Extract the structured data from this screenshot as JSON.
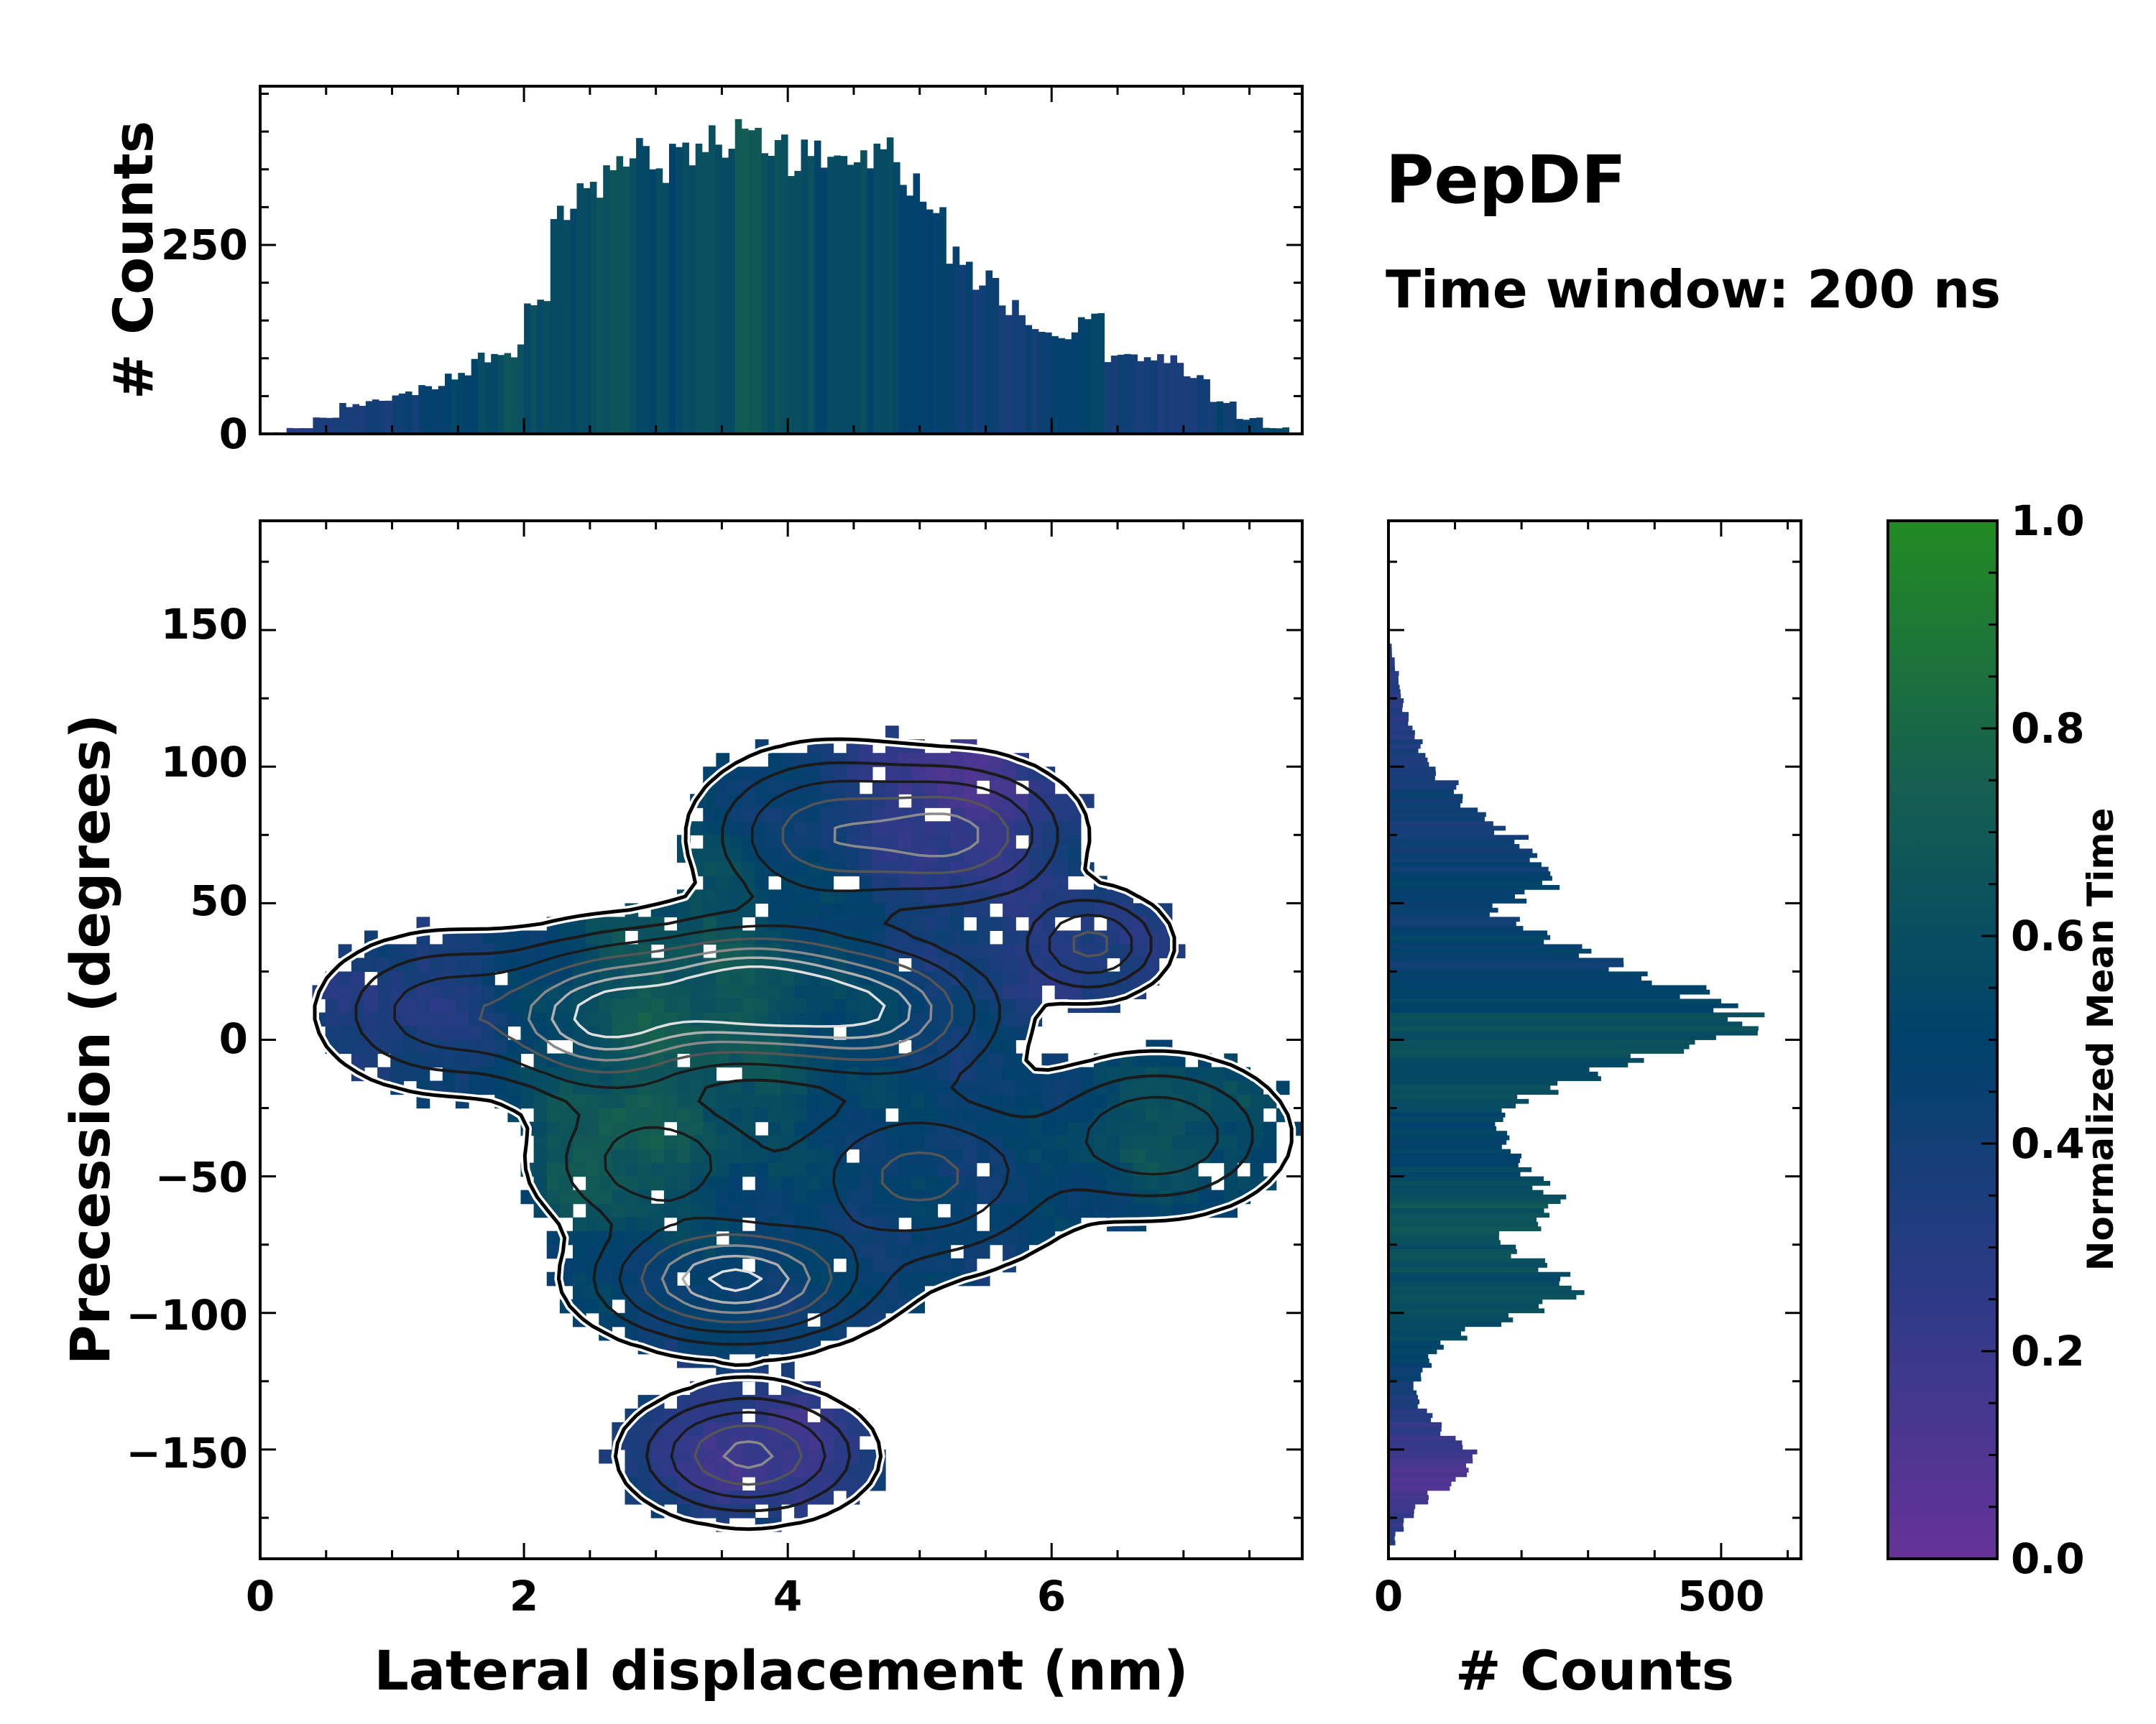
{
  "title": "PepDF",
  "subtitle": "Time window: 200 ns",
  "chart_data": [
    {
      "type": "heatmap",
      "name": "joint-density",
      "xlabel": "Lateral displacement (nm)",
      "ylabel": "Precession (degrees)",
      "xlim": [
        0,
        7.9
      ],
      "ylim": [
        -190,
        190
      ],
      "x_ticks": [
        0,
        2,
        4,
        6
      ],
      "x_tick_labels": [
        "0",
        "2",
        "4",
        "6"
      ],
      "y_ticks": [
        150,
        100,
        50,
        0,
        -50,
        -100,
        -150
      ],
      "y_tick_labels": [
        "150",
        "100",
        "50",
        "0",
        "−50",
        "−100",
        "−150"
      ],
      "color_meaning": "Normalized Mean Time",
      "density_peaks": [
        {
          "x": 3.7,
          "y": 17,
          "sx": 0.55,
          "sy": 14,
          "w": 1.0
        },
        {
          "x": 2.6,
          "y": 8,
          "sx": 0.45,
          "sy": 15,
          "w": 0.85
        },
        {
          "x": 3.6,
          "y": -88,
          "sx": 0.55,
          "sy": 12,
          "w": 0.9
        },
        {
          "x": 3.7,
          "y": -152,
          "sx": 0.45,
          "sy": 12,
          "w": 0.6
        },
        {
          "x": 4.7,
          "y": 10,
          "sx": 0.5,
          "sy": 14,
          "w": 0.7
        },
        {
          "x": 5.3,
          "y": 75,
          "sx": 0.45,
          "sy": 14,
          "w": 0.55
        },
        {
          "x": 6.3,
          "y": 35,
          "sx": 0.3,
          "sy": 10,
          "w": 0.45
        },
        {
          "x": 4.3,
          "y": 75,
          "sx": 0.5,
          "sy": 16,
          "w": 0.5
        },
        {
          "x": 1.4,
          "y": 10,
          "sx": 0.5,
          "sy": 15,
          "w": 0.35
        },
        {
          "x": 5.0,
          "y": -50,
          "sx": 0.6,
          "sy": 18,
          "w": 0.45
        },
        {
          "x": 6.8,
          "y": -35,
          "sx": 0.5,
          "sy": 15,
          "w": 0.4
        },
        {
          "x": 3.0,
          "y": -45,
          "sx": 0.5,
          "sy": 15,
          "w": 0.35
        }
      ]
    },
    {
      "type": "bar",
      "name": "top-histogram",
      "ylabel": "# Counts",
      "xlim": [
        0,
        7.9
      ],
      "ylim": [
        0,
        460
      ],
      "y_ticks": [
        250,
        0
      ],
      "y_tick_labels": [
        "250",
        "0"
      ],
      "x_centers": [
        0.1,
        0.3,
        0.5,
        0.7,
        0.9,
        1.1,
        1.3,
        1.5,
        1.7,
        1.9,
        2.1,
        2.3,
        2.5,
        2.7,
        2.9,
        3.1,
        3.3,
        3.5,
        3.7,
        3.9,
        4.1,
        4.3,
        4.5,
        4.7,
        4.9,
        5.1,
        5.3,
        5.5,
        5.7,
        5.9,
        6.1,
        6.3,
        6.5,
        6.7,
        6.9,
        7.1,
        7.3,
        7.5,
        7.7
      ],
      "values": [
        2,
        8,
        22,
        38,
        45,
        52,
        62,
        78,
        100,
        110,
        175,
        290,
        320,
        355,
        370,
        360,
        372,
        380,
        395,
        375,
        370,
        372,
        385,
        380,
        340,
        295,
        235,
        205,
        170,
        140,
        128,
        160,
        102,
        100,
        98,
        75,
        40,
        20,
        8
      ],
      "mean_time": [
        0.25,
        0.3,
        0.32,
        0.35,
        0.38,
        0.42,
        0.45,
        0.5,
        0.55,
        0.62,
        0.6,
        0.55,
        0.6,
        0.62,
        0.58,
        0.55,
        0.6,
        0.62,
        0.68,
        0.6,
        0.58,
        0.55,
        0.58,
        0.55,
        0.5,
        0.48,
        0.45,
        0.42,
        0.4,
        0.45,
        0.48,
        0.5,
        0.42,
        0.38,
        0.35,
        0.4,
        0.45,
        0.5,
        0.55
      ]
    },
    {
      "type": "bar",
      "name": "right-histogram",
      "orientation": "horizontal",
      "xlabel": "# Counts",
      "xlim": [
        0,
        620
      ],
      "ylim": [
        -190,
        190
      ],
      "x_ticks": [
        0,
        500
      ],
      "x_tick_labels": [
        "0",
        "500"
      ],
      "y_centers": [
        -182.5,
        -177.5,
        -172.5,
        -167.5,
        -162.5,
        -157.5,
        -152.5,
        -147.5,
        -142.5,
        -137.5,
        -132.5,
        -127.5,
        -122.5,
        -117.5,
        -112.5,
        -107.5,
        -102.5,
        -97.5,
        -92.5,
        -87.5,
        -82.5,
        -77.5,
        -72.5,
        -67.5,
        -62.5,
        -57.5,
        -52.5,
        -47.5,
        -42.5,
        -37.5,
        -32.5,
        -27.5,
        -22.5,
        -17.5,
        -12.5,
        -7.5,
        -2.5,
        2.5,
        7.5,
        12.5,
        17.5,
        22.5,
        27.5,
        32.5,
        37.5,
        42.5,
        47.5,
        52.5,
        57.5,
        62.5,
        67.5,
        72.5,
        77.5,
        82.5,
        87.5,
        92.5,
        97.5,
        102.5,
        107.5,
        112.5,
        117.5,
        122.5,
        127.5,
        132.5,
        137.5,
        142.5
      ],
      "values": [
        10,
        22,
        40,
        62,
        95,
        125,
        132,
        105,
        82,
        62,
        45,
        40,
        50,
        62,
        78,
        115,
        180,
        235,
        290,
        260,
        225,
        185,
        170,
        215,
        250,
        250,
        230,
        205,
        195,
        180,
        172,
        170,
        200,
        240,
        300,
        360,
        440,
        520,
        545,
        510,
        460,
        400,
        350,
        300,
        250,
        190,
        160,
        200,
        245,
        240,
        220,
        200,
        165,
        140,
        115,
        100,
        75,
        58,
        48,
        38,
        30,
        22,
        18,
        15,
        10,
        5
      ],
      "mean_time": [
        0.3,
        0.25,
        0.2,
        0.15,
        0.12,
        0.12,
        0.15,
        0.2,
        0.25,
        0.3,
        0.35,
        0.4,
        0.45,
        0.5,
        0.52,
        0.55,
        0.58,
        0.6,
        0.6,
        0.58,
        0.6,
        0.62,
        0.65,
        0.68,
        0.65,
        0.62,
        0.6,
        0.55,
        0.52,
        0.5,
        0.52,
        0.55,
        0.6,
        0.62,
        0.6,
        0.58,
        0.6,
        0.62,
        0.58,
        0.55,
        0.5,
        0.48,
        0.45,
        0.48,
        0.5,
        0.45,
        0.42,
        0.45,
        0.48,
        0.45,
        0.42,
        0.4,
        0.38,
        0.4,
        0.42,
        0.4,
        0.38,
        0.36,
        0.34,
        0.32,
        0.3,
        0.28,
        0.3,
        0.32,
        0.3,
        0.3
      ]
    }
  ],
  "colorbar": {
    "label": "Normalized Mean Time",
    "range": [
      0,
      1
    ],
    "ticks": [
      0,
      0.2,
      0.4,
      0.6,
      0.8,
      1.0
    ],
    "tick_labels": [
      "0.0",
      "0.2",
      "0.4",
      "0.6",
      "0.8",
      "1.0"
    ],
    "colormap": [
      "#663399",
      "#2e3a87",
      "#00426b",
      "#165f50",
      "#228b22"
    ]
  },
  "colors": {
    "contour_light": "#e0e0e0",
    "contour_mid": "#8a8a8a",
    "contour_dark": "#1a1a1a",
    "outline": "#000000"
  }
}
